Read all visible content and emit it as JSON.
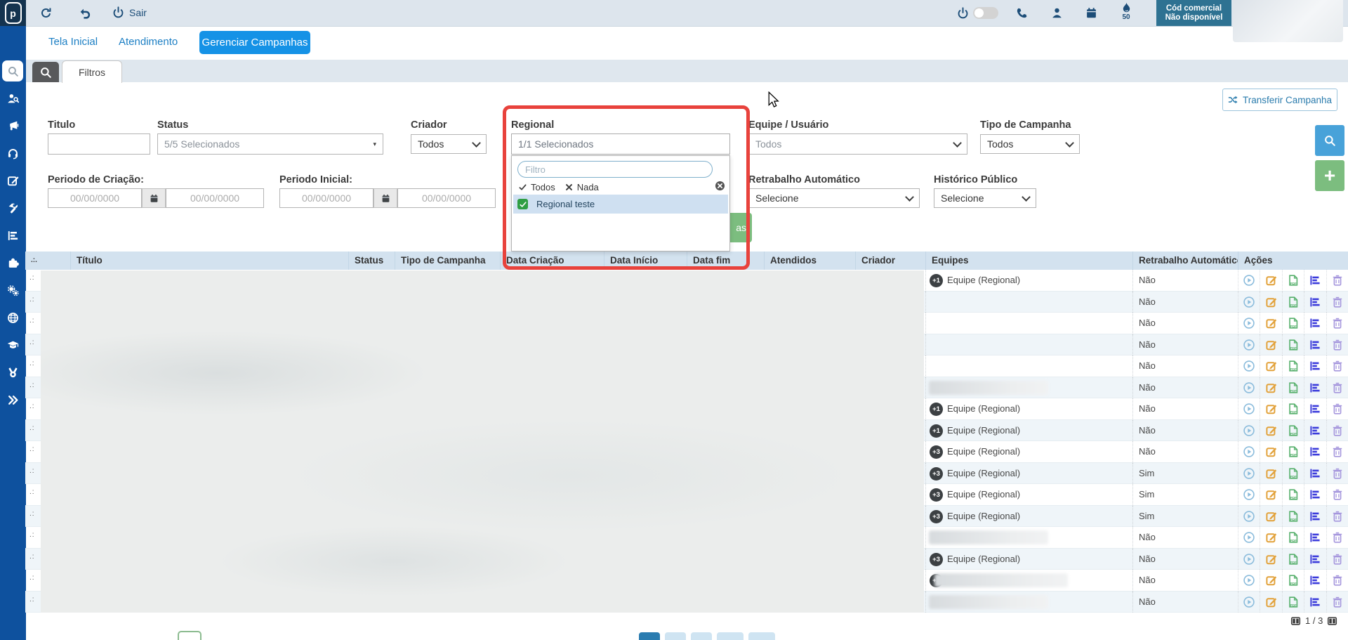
{
  "topbar": {
    "logo_letter": "p",
    "logout_label": "Sair",
    "flame_count": "50",
    "commercial_badge": {
      "line1": "Cód comercial",
      "line2": "Não disponível"
    }
  },
  "nav_tabs": [
    {
      "label": "Tela Inicial",
      "active": false
    },
    {
      "label": "Atendimento",
      "active": false
    },
    {
      "label": "Gerenciar Campanhas",
      "active": true
    }
  ],
  "sidebar": {
    "items": [
      {
        "icon": "search",
        "active": true
      },
      {
        "icon": "user-search",
        "active": false
      },
      {
        "icon": "megaphone",
        "active": false
      },
      {
        "icon": "headset",
        "active": false
      },
      {
        "icon": "compose",
        "active": false
      },
      {
        "icon": "tools",
        "active": false
      },
      {
        "icon": "reports",
        "active": false
      },
      {
        "icon": "plugins",
        "active": false
      },
      {
        "icon": "settings",
        "active": false
      },
      {
        "icon": "globe",
        "active": false
      },
      {
        "icon": "training",
        "active": false
      },
      {
        "icon": "medal",
        "active": false
      },
      {
        "icon": "expand",
        "active": false
      }
    ]
  },
  "filters": {
    "tab_label": "Filtros",
    "titulo_label": "Titulo",
    "status_label": "Status",
    "status_value": "5/5 Selecionados",
    "criador_label": "Criador",
    "criador_value": "Todos",
    "equipe_label": "Equipe / Usuário",
    "equipe_value": "Todos",
    "tipo_label": "Tipo de Campanha",
    "tipo_value": "Todos",
    "periodo_criacao_label": "Periodo de Criação:",
    "periodo_inicial_label": "Periodo Inicial:",
    "date_placeholder": "00/00/0000",
    "retrabalho_label": "Retrabalho Automático",
    "retrabalho_value": "Selecione",
    "historico_label": "Histórico Público",
    "historico_value": "Selecione",
    "transfer_button_label": "Transferir Campanha",
    "partial_button_text": "as"
  },
  "regional_dropdown": {
    "label": "Regional",
    "summary": "1/1 Selecionados",
    "filter_placeholder": "Filtro",
    "select_all_label": "Todos",
    "select_none_label": "Nada",
    "options": [
      {
        "label": "Regional teste",
        "checked": true
      }
    ]
  },
  "table": {
    "handle_glyph": ".:.",
    "row_handle_glyph": ".:",
    "columns": [
      "Título",
      "Status",
      "Tipo de Campanha",
      "Data Criação",
      "Data Início",
      "Data fim",
      "Atendidos",
      "Criador",
      "Equipes",
      "Retrabalho Automático",
      "Ações"
    ],
    "action_icons": [
      "play",
      "edit",
      "pdf",
      "report",
      "delete"
    ],
    "rows": [
      {
        "badge": "+1",
        "team": "Equipe (Regional)",
        "retrabalho": "Não",
        "redacted": false
      },
      {
        "badge": "",
        "team": "",
        "retrabalho": "Não",
        "redacted": false
      },
      {
        "badge": "",
        "team": "",
        "retrabalho": "Não",
        "redacted": false
      },
      {
        "badge": "",
        "team": "",
        "retrabalho": "Não",
        "redacted": false
      },
      {
        "badge": "",
        "team": "",
        "retrabalho": "Não",
        "redacted": false
      },
      {
        "badge": "",
        "team": "",
        "retrabalho": "Não",
        "redacted": true
      },
      {
        "badge": "+1",
        "team": "Equipe (Regional)",
        "retrabalho": "Não",
        "redacted": false
      },
      {
        "badge": "+1",
        "team": "Equipe (Regional)",
        "retrabalho": "Não",
        "redacted": false
      },
      {
        "badge": "+3",
        "team": "Equipe (Regional)",
        "retrabalho": "Não",
        "redacted": false
      },
      {
        "badge": "+3",
        "team": "Equipe (Regional)",
        "retrabalho": "Sim",
        "redacted": false
      },
      {
        "badge": "+3",
        "team": "Equipe (Regional)",
        "retrabalho": "Sim",
        "redacted": false
      },
      {
        "badge": "+3",
        "team": "Equipe (Regional)",
        "retrabalho": "Sim",
        "redacted": false
      },
      {
        "badge": "",
        "team": "",
        "retrabalho": "Não",
        "redacted": true
      },
      {
        "badge": "+3",
        "team": "Equipe (Regional)",
        "retrabalho": "Não",
        "redacted": false
      },
      {
        "badge": "+3",
        "team": "",
        "retrabalho": "Não",
        "redacted": true
      },
      {
        "badge": "",
        "team": "",
        "retrabalho": "Não",
        "redacted": true
      }
    ]
  },
  "pagination": {
    "page_indicator": "1 / 3"
  },
  "colors": {
    "accent_blue": "#1592e6",
    "sidebar_blue": "#0e519e",
    "annotation_red": "#e8423c",
    "action_green": "#7cbd7f",
    "search_btn_blue": "#48a2d9",
    "table_header_bg": "#d3e2ef",
    "topbar_bg": "#dde5ed",
    "badge_dark": "#3c4043"
  }
}
